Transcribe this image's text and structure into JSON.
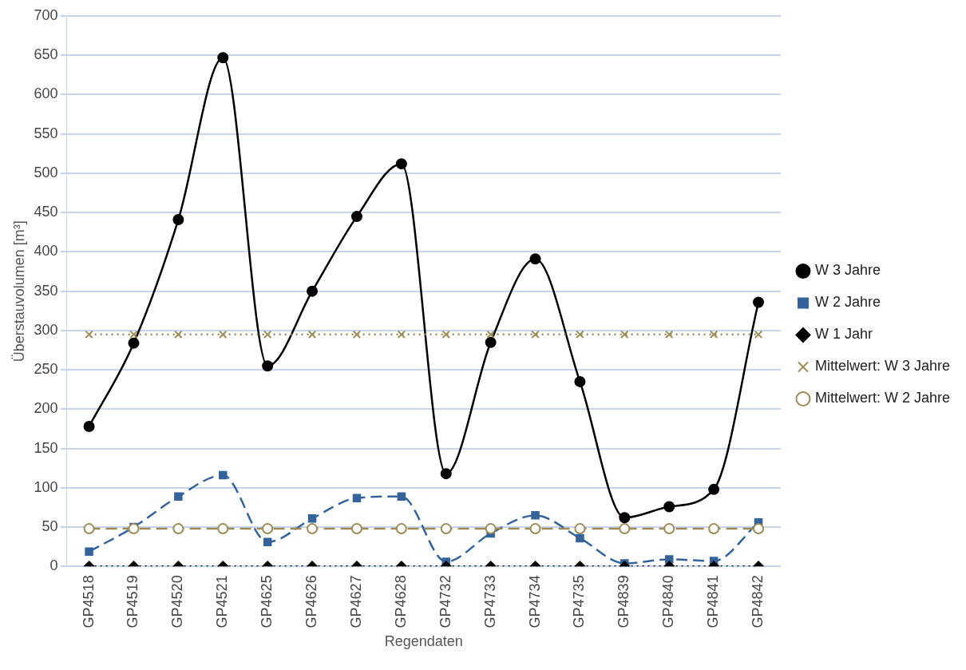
{
  "chart_data": {
    "type": "line",
    "xlabel": "Regendaten",
    "ylabel": "Überstauvolumen [m³]",
    "categories": [
      "GP4518",
      "GP4519",
      "GP4520",
      "GP4521",
      "GP4625",
      "GP4626",
      "GP4627",
      "GP4628",
      "GP4732",
      "GP4733",
      "GP4734",
      "GP4735",
      "GP4839",
      "GP4840",
      "GP4841",
      "GP4842"
    ],
    "series": [
      {
        "name": "W 3 Jahre",
        "color": "#000000",
        "marker": "circle",
        "line_style": "solid",
        "values": [
          178,
          284,
          441,
          647,
          255,
          350,
          445,
          512,
          118,
          285,
          391,
          235,
          62,
          76,
          98,
          336
        ]
      },
      {
        "name": "W 2 Jahre",
        "color": "#34629a",
        "marker": "square",
        "line_style": "dashed",
        "values": [
          19,
          50,
          89,
          116,
          31,
          61,
          87,
          89,
          6,
          42,
          65,
          36,
          4,
          9,
          7,
          56
        ]
      },
      {
        "name": "W 1 Jahr",
        "color": "#000000",
        "marker": "diamond",
        "line_style": "dotted",
        "values": [
          0,
          0,
          0,
          0,
          0,
          0,
          0,
          0,
          0,
          0,
          0,
          0,
          0,
          0,
          0,
          0
        ]
      },
      {
        "name": "Mittelwert: W 3 Jahre",
        "color": "#9c8c5a",
        "marker": "cross",
        "line_style": "dotted",
        "values": [
          295,
          295,
          295,
          295,
          295,
          295,
          295,
          295,
          295,
          295,
          295,
          295,
          295,
          295,
          295,
          295
        ]
      },
      {
        "name": "Mittelwert: W 2 Jahre",
        "color": "#9c8c5a",
        "marker": "circle",
        "line_style": "dashed",
        "values": [
          48,
          48,
          48,
          48,
          48,
          48,
          48,
          48,
          48,
          48,
          48,
          48,
          48,
          48,
          48,
          48
        ]
      }
    ],
    "ylim": [
      0,
      700
    ],
    "yticks": [
      0,
      50,
      100,
      150,
      200,
      250,
      300,
      350,
      400,
      450,
      500,
      550,
      600,
      650,
      700
    ],
    "grid": "y",
    "legend": "right"
  }
}
